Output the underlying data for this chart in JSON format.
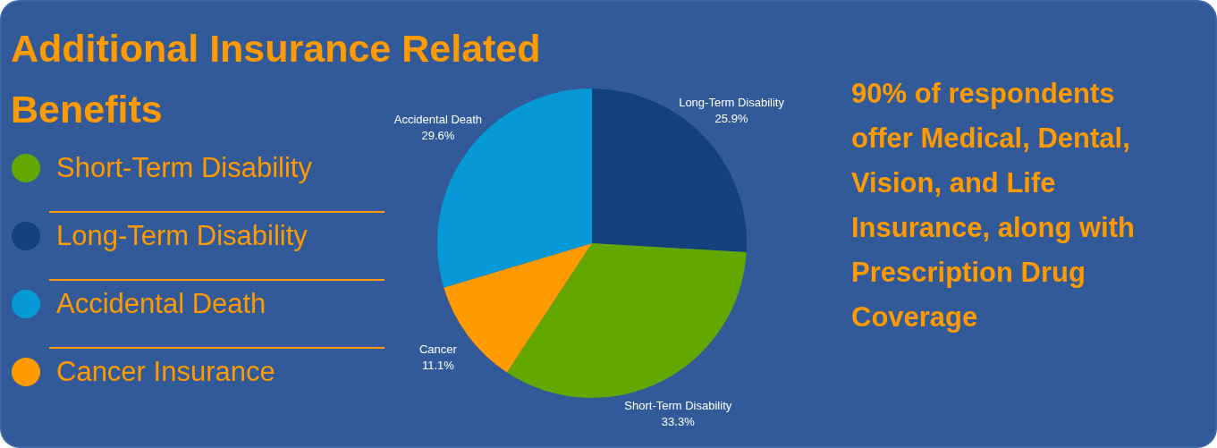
{
  "chart_data": {
    "type": "pie",
    "title": "Additional Insurance Related Benefits",
    "categories": [
      "Long-Term Disability",
      "Short-Term Disability",
      "Cancer",
      "Accidental Death"
    ],
    "values": [
      25.9,
      33.3,
      11.1,
      29.6
    ],
    "colors": [
      "#12417c",
      "#62a800",
      "#ff9a00",
      "#0799d6"
    ],
    "value_labels": [
      "25.9%",
      "33.3%",
      "11.1%",
      "29.6%"
    ],
    "annotations": [
      "90% of respondents offer Medical, Dental, Vision, and Life Insurance, along with Prescription Drug Coverage",
      "Short-Term Disability",
      "Long-Term Disability",
      "Accidental Death",
      "Cancer Insurance"
    ]
  }
}
